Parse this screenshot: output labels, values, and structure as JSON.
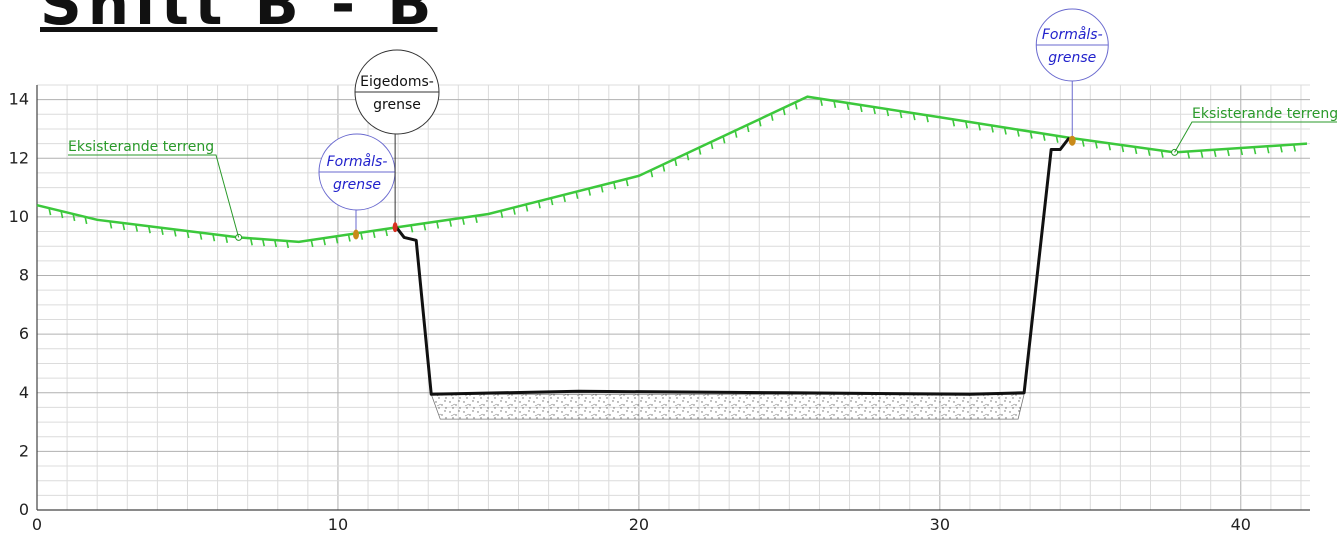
{
  "title": "Snitt B - B",
  "labels": {
    "terrain_left": "Eksisterande terreng",
    "terrain_right": "Eksisterande terreng",
    "eigedom_line1": "Eigedoms-",
    "eigedom_line2": "grense",
    "formal_line1": "Formåls-",
    "formal_line2": "grense"
  },
  "colors": {
    "terrain": "#3cc83c",
    "terrain_text": "#2a9a2a",
    "section": "#111111",
    "formal_text": "#2222cc",
    "marker_orange": "#c98a1a",
    "marker_red": "#d83020",
    "grid_major": "#b0b0b0",
    "grid_minor": "#dcdcdc"
  },
  "chart_data": {
    "type": "line",
    "title": "Snitt B - B",
    "xlabel": "",
    "ylabel": "",
    "xlim": [
      0,
      42.3
    ],
    "ylim": [
      0,
      14.5
    ],
    "x_ticks": [
      0,
      10,
      20,
      30,
      40
    ],
    "y_ticks": [
      0,
      2,
      4,
      6,
      8,
      10,
      12,
      14
    ],
    "grid": true,
    "series": [
      {
        "role": "existing-terrain",
        "points": [
          [
            0,
            10.4
          ],
          [
            2,
            9.9
          ],
          [
            6.7,
            9.3
          ],
          [
            8.7,
            9.15
          ],
          [
            12,
            9.65
          ],
          [
            15,
            10.1
          ],
          [
            20,
            11.4
          ],
          [
            25.6,
            14.1
          ],
          [
            30,
            13.4
          ],
          [
            34.3,
            12.7
          ],
          [
            37.8,
            12.2
          ],
          [
            42.2,
            12.5
          ]
        ]
      },
      {
        "role": "planned-section",
        "points": [
          [
            11.9,
            9.7
          ],
          [
            12.2,
            9.3
          ],
          [
            12.6,
            9.2
          ],
          [
            13.1,
            3.95
          ],
          [
            18,
            4.05
          ],
          [
            25,
            4.0
          ],
          [
            31,
            3.95
          ],
          [
            32.8,
            4.0
          ],
          [
            33.7,
            12.3
          ],
          [
            34.0,
            12.3
          ],
          [
            34.3,
            12.7
          ]
        ]
      }
    ],
    "fill_trapezoid": [
      [
        13.1,
        3.95
      ],
      [
        32.8,
        3.95
      ],
      [
        32.6,
        3.1
      ],
      [
        13.4,
        3.1
      ]
    ],
    "markers": [
      {
        "type": "formal",
        "x": 10.6,
        "y": 9.4
      },
      {
        "type": "eigedom",
        "x": 11.9,
        "y": 9.65
      },
      {
        "type": "formal",
        "x": 34.4,
        "y": 12.6
      }
    ],
    "terrain_labels": [
      {
        "key": "terrain_left",
        "x": 6.7,
        "y": 9.3
      },
      {
        "key": "terrain_right",
        "x": 37.8,
        "y": 12.2
      }
    ]
  }
}
